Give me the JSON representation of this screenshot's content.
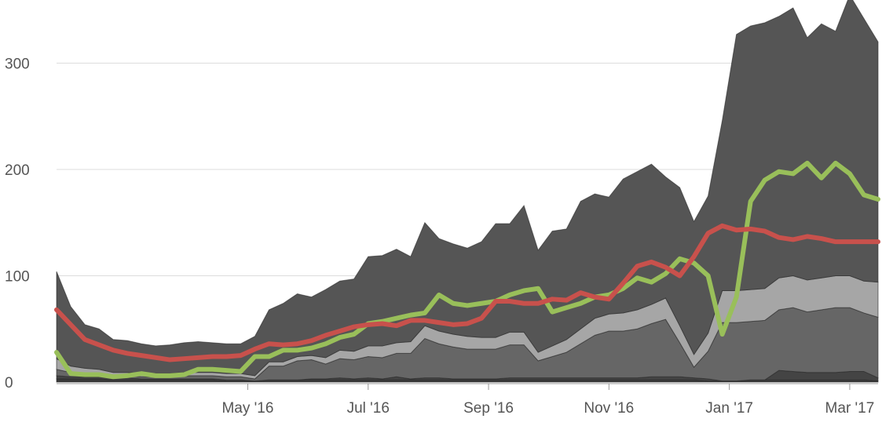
{
  "chart_data": {
    "type": "area",
    "grid": true,
    "ylim": [
      0,
      350
    ],
    "yticks": [
      0,
      100,
      200,
      300
    ],
    "xticks": [
      {
        "label": "May '16",
        "week": 13.5
      },
      {
        "label": "Jul '16",
        "week": 22
      },
      {
        "label": "Sep '16",
        "week": 30.5
      },
      {
        "label": "Nov '16",
        "week": 39
      },
      {
        "label": "Jan '17",
        "week": 47.5
      },
      {
        "label": "Mar '17",
        "week": 56
      }
    ],
    "x": [
      0,
      1,
      2,
      3,
      4,
      5,
      6,
      7,
      8,
      9,
      10,
      11,
      12,
      13,
      14,
      15,
      16,
      17,
      18,
      19,
      20,
      21,
      22,
      23,
      24,
      25,
      26,
      27,
      28,
      29,
      30,
      31,
      32,
      33,
      34,
      35,
      36,
      37,
      38,
      39,
      40,
      41,
      42,
      43,
      44,
      45,
      46,
      47,
      48,
      49,
      50,
      51,
      52,
      53,
      54,
      55,
      56,
      57,
      58
    ],
    "stacked_series": [
      {
        "color": "#3a3a3a",
        "values": [
          3,
          3,
          3,
          3,
          2,
          2,
          2,
          2,
          2,
          2,
          2,
          2,
          1,
          1,
          1,
          2,
          2,
          2,
          2,
          2,
          2,
          2,
          2,
          2,
          2,
          2,
          2,
          2,
          2,
          2,
          2,
          2,
          2,
          2,
          2,
          2,
          2,
          2,
          2,
          2,
          2,
          2,
          2,
          2,
          2,
          2,
          1,
          1,
          1,
          2,
          2,
          2,
          2,
          2,
          2,
          2,
          2,
          2,
          1
        ]
      },
      {
        "color": "#444444",
        "values": [
          3,
          2,
          2,
          2,
          2,
          2,
          1,
          1,
          1,
          1,
          1,
          1,
          1,
          1,
          0,
          0,
          0,
          0,
          1,
          1,
          2,
          1,
          2,
          1,
          3,
          1,
          2,
          2,
          1,
          1,
          1,
          1,
          2,
          2,
          2,
          2,
          2,
          2,
          2,
          2,
          2,
          2,
          3,
          3,
          3,
          2,
          2,
          0,
          0,
          0,
          0,
          9,
          8,
          7,
          7,
          7,
          8,
          8,
          3
        ]
      },
      {
        "color": "#666666",
        "values": [
          6,
          4,
          3,
          3,
          2,
          2,
          2,
          2,
          2,
          3,
          3,
          3,
          3,
          3,
          2,
          13,
          13,
          18,
          18,
          14,
          18,
          18,
          20,
          20,
          22,
          24,
          37,
          32,
          30,
          28,
          28,
          28,
          31,
          31,
          16,
          20,
          24,
          32,
          40,
          44,
          44,
          46,
          50,
          54,
          32,
          10,
          26,
          55,
          55,
          55,
          56,
          57,
          60,
          57,
          59,
          61,
          60,
          55,
          57
        ]
      },
      {
        "color": "#a6a6a6",
        "values": [
          10,
          6,
          5,
          4,
          3,
          3,
          3,
          3,
          3,
          3,
          3,
          3,
          3,
          3,
          3,
          4,
          4,
          4,
          4,
          6,
          8,
          8,
          10,
          11,
          10,
          11,
          12,
          12,
          12,
          12,
          11,
          11,
          12,
          12,
          8,
          10,
          12,
          14,
          16,
          16,
          17,
          18,
          18,
          20,
          16,
          12,
          17,
          30,
          30,
          30,
          30,
          30,
          30,
          30,
          30,
          30,
          30,
          30,
          33
        ]
      },
      {
        "color": "#555555",
        "values": [
          82,
          56,
          41,
          38,
          31,
          30,
          28,
          26,
          27,
          28,
          29,
          28,
          28,
          28,
          37,
          49,
          55,
          59,
          55,
          64,
          65,
          68,
          84,
          85,
          88,
          80,
          97,
          87,
          85,
          83,
          90,
          107,
          102,
          119,
          96,
          108,
          104,
          120,
          117,
          110,
          126,
          130,
          132,
          114,
          130,
          125,
          129,
          160,
          241,
          248,
          250,
          246,
          252,
          228,
          239,
          230,
          264,
          247,
          226
        ]
      }
    ],
    "line_series": [
      {
        "color": "#99bf5a",
        "values": [
          28,
          8,
          7,
          7,
          5,
          6,
          8,
          6,
          6,
          7,
          12,
          12,
          11,
          10,
          24,
          24,
          30,
          30,
          32,
          36,
          42,
          45,
          55,
          57,
          60,
          63,
          65,
          82,
          74,
          72,
          74,
          76,
          82,
          86,
          88,
          66,
          70,
          74,
          80,
          82,
          88,
          98,
          94,
          102,
          116,
          112,
          100,
          45,
          80,
          170,
          190,
          198,
          196,
          206,
          192,
          206,
          196,
          176,
          172
        ]
      },
      {
        "color": "#c8514c",
        "values": [
          68,
          54,
          40,
          35,
          30,
          27,
          25,
          23,
          21,
          22,
          23,
          24,
          24,
          25,
          31,
          36,
          35,
          36,
          39,
          44,
          48,
          52,
          54,
          55,
          53,
          58,
          58,
          56,
          54,
          55,
          60,
          76,
          76,
          74,
          74,
          78,
          77,
          84,
          80,
          78,
          93,
          109,
          113,
          108,
          100,
          118,
          140,
          147,
          143,
          144,
          142,
          136,
          134,
          137,
          135,
          132,
          132,
          132,
          132
        ]
      }
    ]
  }
}
